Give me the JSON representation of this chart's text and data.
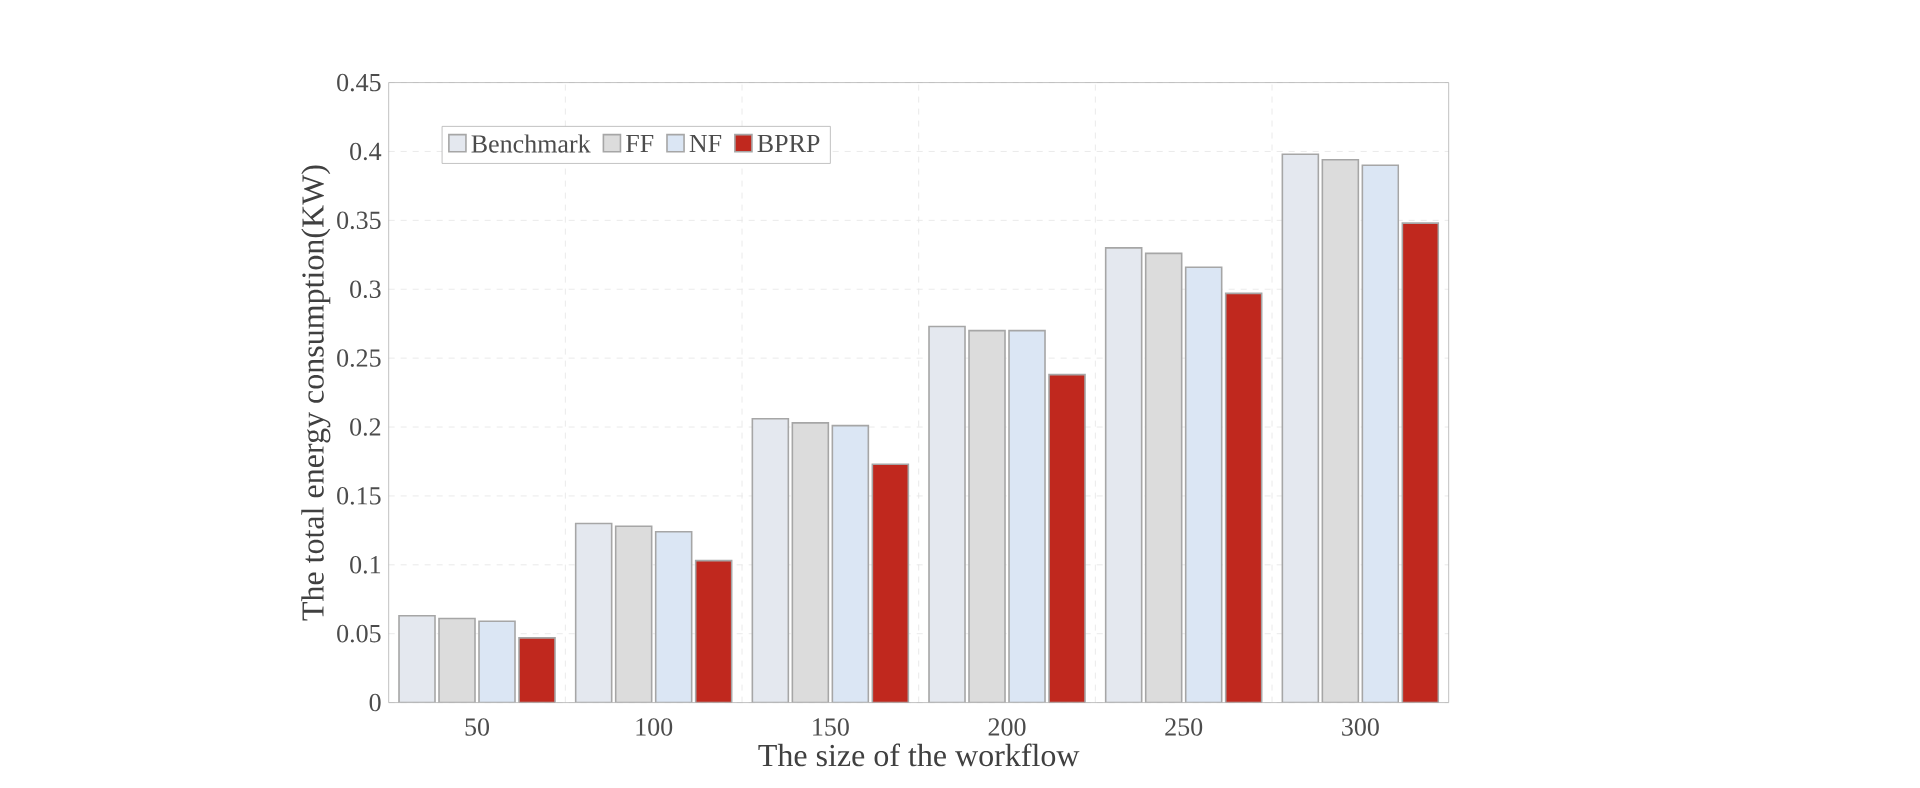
{
  "chart_data": {
    "type": "bar",
    "xlabel": "The size of the workflow",
    "ylabel": "The total energy consumption(KW)",
    "categories": [
      "50",
      "100",
      "150",
      "200",
      "250",
      "300"
    ],
    "series": [
      {
        "name": "Benchmark",
        "color": "#e4e8ef",
        "values": [
          0.063,
          0.13,
          0.206,
          0.273,
          0.33,
          0.398
        ]
      },
      {
        "name": "FF",
        "color": "#dcdcdc",
        "values": [
          0.061,
          0.128,
          0.203,
          0.27,
          0.326,
          0.394
        ]
      },
      {
        "name": "NF",
        "color": "#dbe6f4",
        "values": [
          0.059,
          0.124,
          0.201,
          0.27,
          0.316,
          0.39
        ]
      },
      {
        "name": "BPRP",
        "color": "#c0281e",
        "values": [
          0.047,
          0.103,
          0.173,
          0.238,
          0.297,
          0.348
        ]
      }
    ],
    "ylim": [
      0,
      0.45
    ],
    "yticks": [
      0,
      0.05,
      0.1,
      0.15,
      0.2,
      0.25,
      0.3,
      0.35,
      0.4,
      0.45
    ],
    "grid": true,
    "legend": "top left"
  }
}
